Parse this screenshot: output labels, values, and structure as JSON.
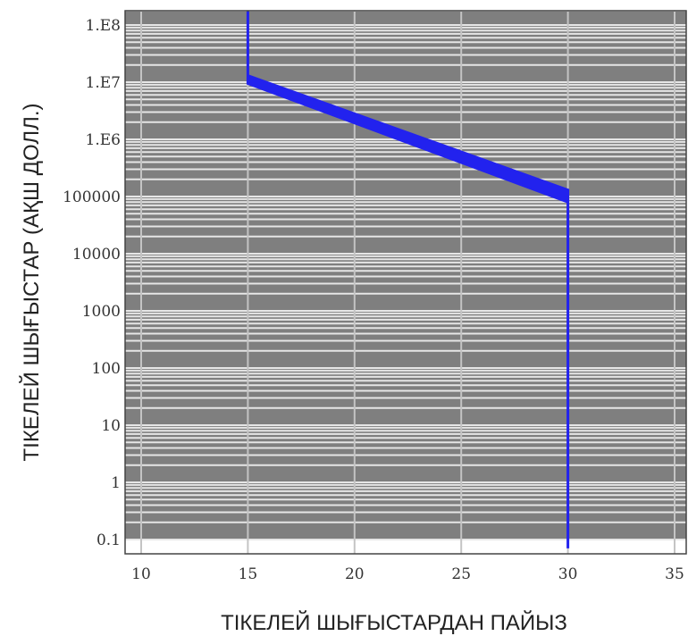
{
  "chart_data": {
    "type": "line",
    "xlabel": "ТІКЕЛЕЙ ШЫҒЫСТАРДАН ПАЙЫЗ",
    "ylabel": "ТІКЕЛЕЙ ШЫҒЫСТАР (АҚШ ДОЛЛ.)",
    "xlim": [
      9.5,
      35.5
    ],
    "ylim": [
      0.07,
      200000000
    ],
    "yscale": "log",
    "grid": true,
    "xticks": [
      10,
      15,
      20,
      25,
      30,
      35
    ],
    "xtick_labels": [
      "10",
      "15",
      "20",
      "25",
      "30",
      "35"
    ],
    "yticks": [
      0.1,
      1,
      10,
      100,
      1000,
      10000,
      100000,
      1000000,
      10000000,
      100000000
    ],
    "ytick_labels": [
      "0.1",
      "1",
      "10",
      "100",
      "1000",
      "10000",
      "100000",
      "1.E6",
      "1.E7",
      "1.E8"
    ],
    "series": [
      {
        "color": "#2222ee",
        "x": [
          15,
          15,
          30,
          30
        ],
        "y_upper": [
          200000000,
          13000000,
          130000,
          0.07
        ],
        "y_lower": [
          200000000,
          9500000,
          80000,
          0.07
        ]
      }
    ],
    "colors": {
      "band": "#7f7f7f",
      "gridline": "#e6e6e6",
      "series": "#2222ee"
    }
  }
}
